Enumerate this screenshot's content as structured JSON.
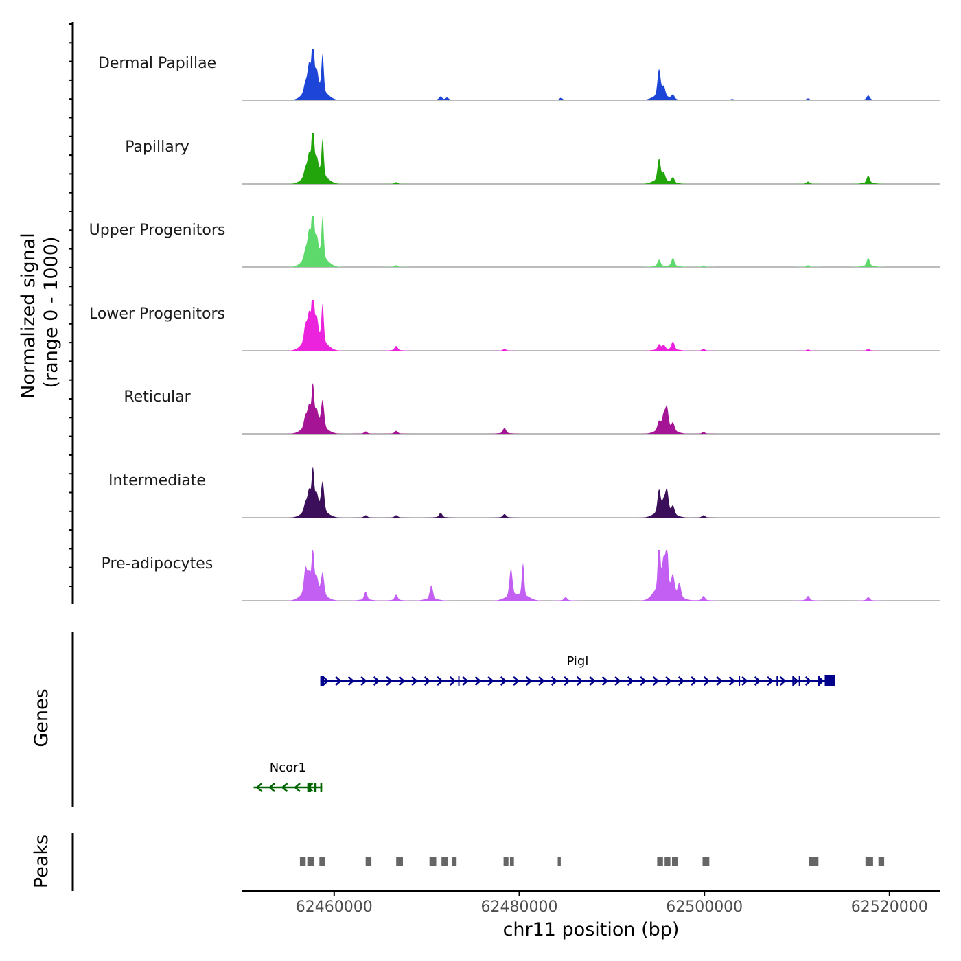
{
  "chart_data": {
    "type": "area",
    "xlabel": "chr11 position (bp)",
    "ylabel": [
      "Normalized signal",
      "(range 0 - 1000)"
    ],
    "xlim": [
      62450000,
      62525500
    ],
    "xticks": [
      62460000,
      62480000,
      62500000,
      62520000
    ],
    "xtick_labels": [
      "62460000",
      "62480000",
      "62500000",
      "62520000"
    ],
    "ylim": [
      0,
      1000
    ],
    "tracks": [
      {
        "name": "Dermal Papillae",
        "color": "#1d46d8",
        "peaks": [
          [
            62456900,
            170
          ],
          [
            62457300,
            450
          ],
          [
            62457700,
            960
          ],
          [
            62458100,
            300
          ],
          [
            62458750,
            700
          ],
          [
            62471500,
            60
          ],
          [
            62472200,
            40
          ],
          [
            62484500,
            40
          ],
          [
            62495100,
            500
          ],
          [
            62495600,
            180
          ],
          [
            62496600,
            80
          ],
          [
            62503000,
            20
          ],
          [
            62511200,
            30
          ],
          [
            62517700,
            80
          ]
        ]
      },
      {
        "name": "Papillary",
        "color": "#22a40b",
        "peaks": [
          [
            62456900,
            150
          ],
          [
            62457300,
            350
          ],
          [
            62457700,
            970
          ],
          [
            62458100,
            250
          ],
          [
            62458750,
            680
          ],
          [
            62466700,
            30
          ],
          [
            62495100,
            410
          ],
          [
            62495600,
            140
          ],
          [
            62496600,
            100
          ],
          [
            62511200,
            40
          ],
          [
            62517700,
            140
          ]
        ]
      },
      {
        "name": "Upper Progenitors",
        "color": "#5ed96c",
        "peaks": [
          [
            62456900,
            160
          ],
          [
            62457300,
            450
          ],
          [
            62457700,
            1000
          ],
          [
            62458100,
            300
          ],
          [
            62458750,
            760
          ],
          [
            62466700,
            30
          ],
          [
            62495100,
            120
          ],
          [
            62496600,
            150
          ],
          [
            62499900,
            20
          ],
          [
            62511200,
            30
          ],
          [
            62517700,
            150
          ]
        ]
      },
      {
        "name": "Lower Progenitors",
        "color": "#ec23dd",
        "peaks": [
          [
            62456900,
            300
          ],
          [
            62457300,
            450
          ],
          [
            62457700,
            1000
          ],
          [
            62458100,
            350
          ],
          [
            62458750,
            700
          ],
          [
            62466700,
            80
          ],
          [
            62478400,
            30
          ],
          [
            62495100,
            100
          ],
          [
            62495600,
            80
          ],
          [
            62496600,
            150
          ],
          [
            62499900,
            30
          ],
          [
            62511200,
            20
          ],
          [
            62517700,
            30
          ]
        ]
      },
      {
        "name": "Reticular",
        "color": "#a51494",
        "peaks": [
          [
            62456900,
            200
          ],
          [
            62457300,
            350
          ],
          [
            62457700,
            740
          ],
          [
            62458100,
            250
          ],
          [
            62458750,
            500
          ],
          [
            62463400,
            40
          ],
          [
            62466700,
            50
          ],
          [
            62478400,
            100
          ],
          [
            62495100,
            160
          ],
          [
            62495600,
            260
          ],
          [
            62495950,
            390
          ],
          [
            62496600,
            140
          ],
          [
            62499900,
            30
          ]
        ]
      },
      {
        "name": "Intermediate",
        "color": "#3b0f59",
        "peaks": [
          [
            62456900,
            150
          ],
          [
            62457300,
            340
          ],
          [
            62457700,
            740
          ],
          [
            62458100,
            250
          ],
          [
            62458750,
            540
          ],
          [
            62463400,
            40
          ],
          [
            62466700,
            40
          ],
          [
            62471500,
            80
          ],
          [
            62478400,
            60
          ],
          [
            62495100,
            420
          ],
          [
            62495600,
            200
          ],
          [
            62495950,
            400
          ],
          [
            62496600,
            150
          ],
          [
            62499900,
            40
          ]
        ]
      },
      {
        "name": "Pre-adipocytes",
        "color": "#c35ff2",
        "peaks": [
          [
            62456900,
            450
          ],
          [
            62457300,
            300
          ],
          [
            62457700,
            770
          ],
          [
            62458100,
            250
          ],
          [
            62458750,
            400
          ],
          [
            62463400,
            150
          ],
          [
            62466700,
            100
          ],
          [
            62470500,
            260
          ],
          [
            62479100,
            520
          ],
          [
            62480400,
            620
          ],
          [
            62485000,
            60
          ],
          [
            62495100,
            1000
          ],
          [
            62495600,
            500
          ],
          [
            62495950,
            830
          ],
          [
            62496600,
            300
          ],
          [
            62497300,
            250
          ],
          [
            62499900,
            80
          ],
          [
            62511200,
            80
          ],
          [
            62517700,
            60
          ]
        ]
      }
    ],
    "genes": [
      {
        "name": "Pigl",
        "color": "#00008b",
        "strand": "+",
        "start": 62458500,
        "end": 62514100,
        "exons": [
          [
            62458500,
            62458900
          ],
          [
            62473400,
            62473500
          ],
          [
            62503700,
            62503800
          ],
          [
            62507800,
            62507900
          ],
          [
            62509500,
            62509600
          ],
          [
            62510200,
            62510300
          ],
          [
            62512300,
            62512400
          ],
          [
            62513000,
            62514100
          ]
        ]
      },
      {
        "name": "Ncor1",
        "color": "#006400",
        "strand": "-",
        "start": 62451300,
        "end": 62458700,
        "exons": [
          [
            62457100,
            62457500
          ],
          [
            62457800,
            62458100
          ],
          [
            62458500,
            62458700
          ]
        ]
      }
    ],
    "peaks_track": {
      "label": "Peaks",
      "color": "#666666",
      "regions": [
        [
          62456300,
          62457000
        ],
        [
          62457100,
          62457900
        ],
        [
          62458400,
          62459100
        ],
        [
          62463400,
          62464100
        ],
        [
          62466700,
          62467500
        ],
        [
          62470300,
          62471100
        ],
        [
          62471600,
          62472400
        ],
        [
          62472700,
          62473300
        ],
        [
          62478300,
          62478900
        ],
        [
          62479000,
          62479500
        ],
        [
          62484150,
          62484550
        ],
        [
          62494900,
          62495600
        ],
        [
          62495700,
          62496400
        ],
        [
          62496500,
          62497200
        ],
        [
          62499800,
          62500600
        ],
        [
          62511300,
          62512400
        ],
        [
          62517400,
          62518300
        ],
        [
          62518800,
          62519500
        ]
      ]
    },
    "panel_titles": {
      "genes": "Genes",
      "peaks": "Peaks"
    }
  }
}
